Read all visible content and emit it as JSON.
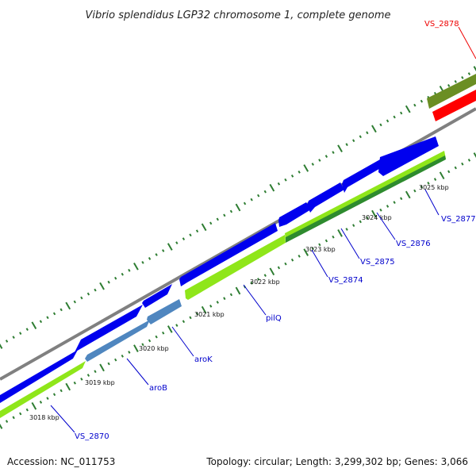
{
  "title": "Vibrio splendidus LGP32 chromosome 1, complete genome",
  "footer": {
    "accession": "Accession: NC_011753",
    "summary": "Topology: circular; Length: 3,299,302 bp; Genes: 3,066"
  },
  "scale_labels": [
    "3018 kbp",
    "3019 kbp",
    "3020 kbp",
    "3021 kbp",
    "3022 kbp",
    "3023 kbp",
    "3024 kbp",
    "3025 kbp"
  ],
  "gene_labels": [
    "VS_2870",
    "aroB",
    "aroK",
    "pilQ",
    "VS_2874",
    "VS_2875",
    "VS_2876",
    "VS_2877",
    "VS_2878"
  ],
  "colors": {
    "backbone": "#808080",
    "cds": "#0000ee",
    "gene_light": "#8fe61a",
    "gene_steel": "#4f86bf",
    "gene_dark_green": "#2e8b2e",
    "gene_olive": "#6b8e23",
    "gene_red": "#ff0000",
    "tick": "#2e7d32",
    "label_blue": "#0000cc",
    "label_red": "#ee0000"
  }
}
